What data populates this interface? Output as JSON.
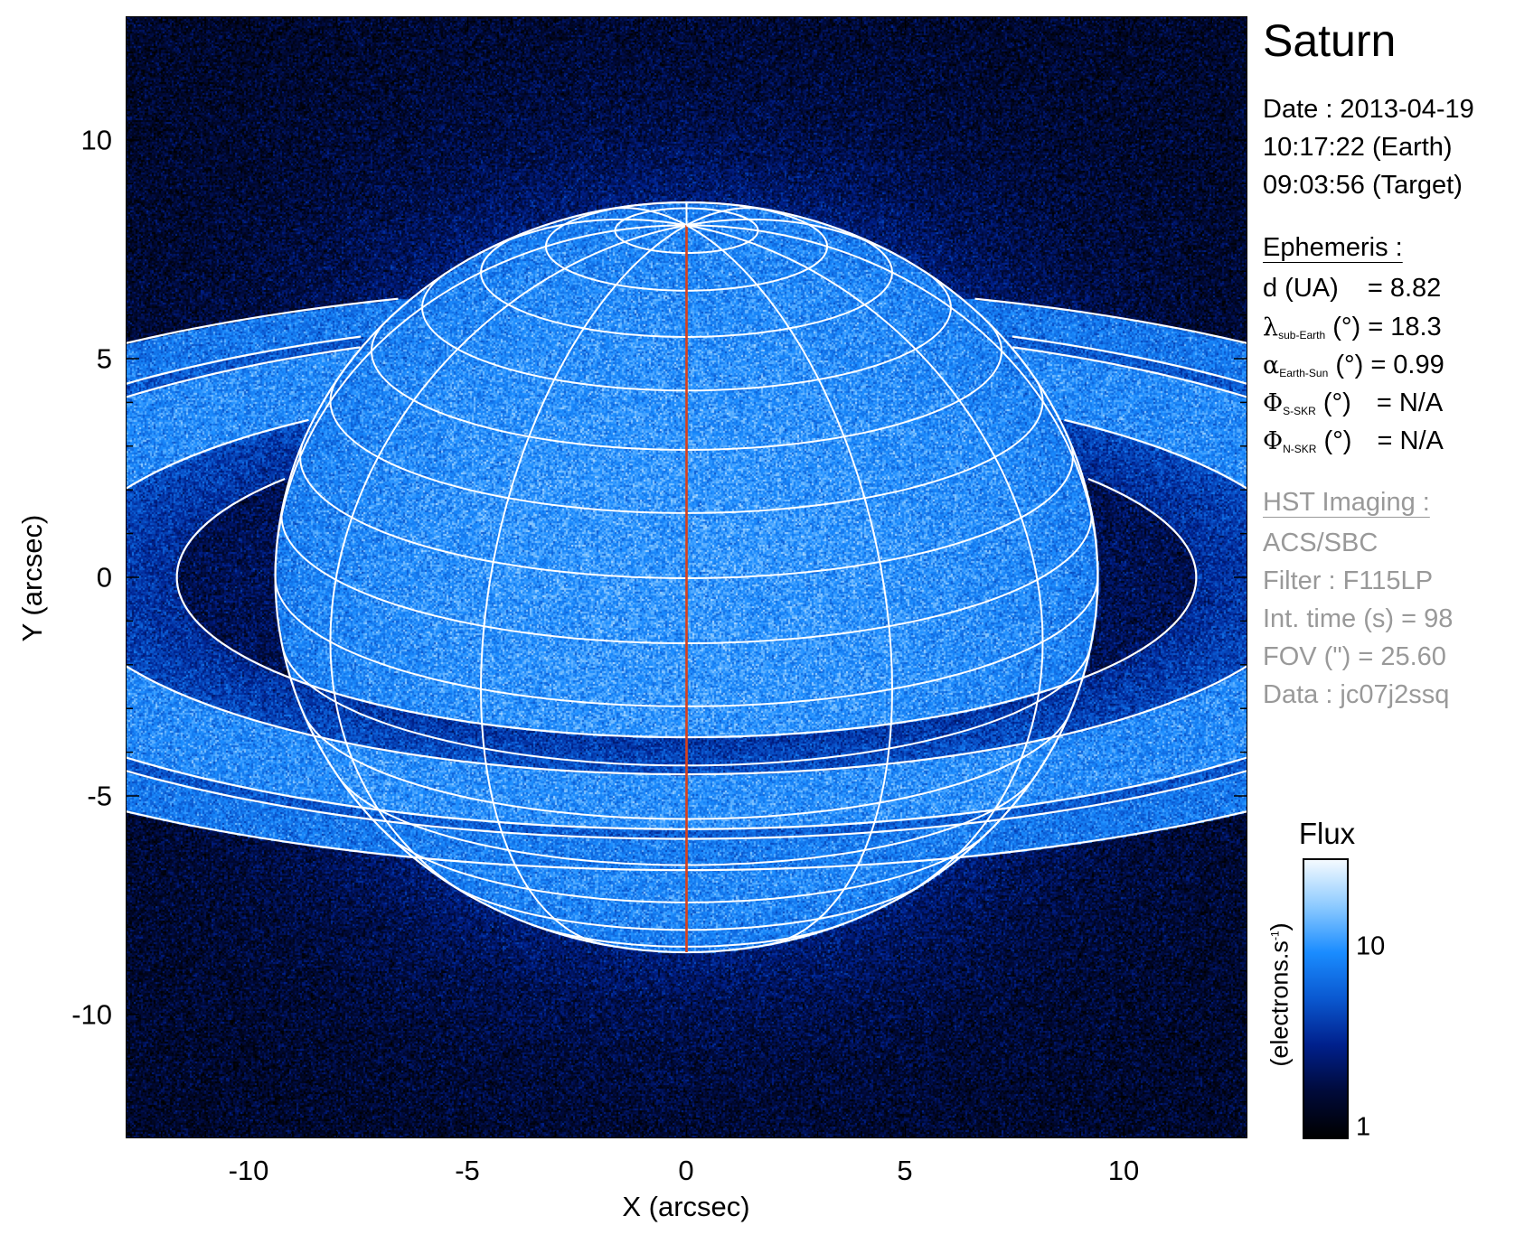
{
  "panel": {
    "title": "Saturn",
    "date_line": "Date : 2013-04-19",
    "earth_time": "10:17:22 (Earth)",
    "target_time": "09:03:56 (Target)",
    "ephemeris_heading": "Ephemeris :",
    "ephemeris": [
      {
        "symbol": "d (UA)",
        "sub": "",
        "unit": "",
        "value": "= 8.82"
      },
      {
        "symbol": "λ",
        "sub": "sub-Earth",
        "unit": "(°)",
        "value": "= 18.3"
      },
      {
        "symbol": "α",
        "sub": "Earth-Sun",
        "unit": "(°)",
        "value": "= 0.99"
      },
      {
        "symbol": "Φ",
        "sub": "S-SKR",
        "unit": "(°)",
        "value": "= N/A"
      },
      {
        "symbol": "Φ",
        "sub": "N-SKR",
        "unit": "(°)",
        "value": "= N/A"
      }
    ],
    "imaging_heading": "HST Imaging :",
    "imaging": [
      "ACS/SBC",
      "Filter : F115LP",
      "Int. time (s) = 98",
      "FOV (\") = 25.60",
      "Data : jc07j2ssq"
    ]
  },
  "chart_data": {
    "type": "heatmap",
    "xlabel": "X (arcsec)",
    "ylabel": "Y (arcsec)",
    "xlim": [
      -12.8,
      12.8
    ],
    "ylim": [
      -12.8,
      12.8
    ],
    "xticks": [
      "-10",
      "-5",
      "0",
      "5",
      "10"
    ],
    "yticks": [
      "10",
      "5",
      "0",
      "-5",
      "-10"
    ],
    "xtick_values": [
      -10,
      -5,
      0,
      5,
      10
    ],
    "ytick_values": [
      10,
      5,
      0,
      -5,
      -10
    ],
    "overlay": {
      "sub_earth_latitude_deg": 18.3,
      "latitude_grid_step_deg": 10,
      "longitude_grid_step_deg": 30,
      "central_meridian_color": "#d8401a",
      "grid_color": "#ffffff"
    },
    "colorbar": {
      "title": "Flux",
      "label": "(electrons.s",
      "label_sup": "-1",
      "label_close": ")",
      "scale": "log",
      "range": [
        1,
        30
      ],
      "ticks": [
        "10",
        "1"
      ],
      "tick_values": [
        10,
        1
      ]
    },
    "colormap": [
      "#000000",
      "#000a3a",
      "#00208c",
      "#0a58d0",
      "#1a8cff",
      "#8ccaff",
      "#f4faff"
    ]
  }
}
